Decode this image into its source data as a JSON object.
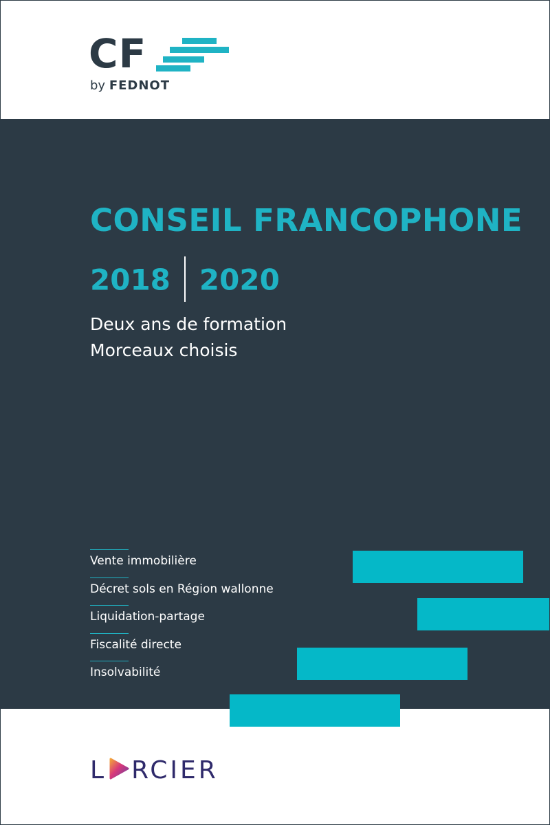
{
  "logo_top": {
    "letters": "CF",
    "by": "by",
    "brand": "FEDNOT",
    "accent_color": "#1fb3c4",
    "text_color": "#2c3a45"
  },
  "cover": {
    "title": "CONSEIL FRANCOPHONE",
    "year_start": "2018",
    "year_end": "2020",
    "subtitle_lines": [
      "Deux ans de formation",
      "Morceaux choisis"
    ],
    "band_color": "#2c3a45",
    "accent_color": "#1fb3c4"
  },
  "topics": [
    "Vente immobilière",
    "Décret sols en Région wallonne",
    "Liquidation-partage",
    "Fiscalité directe",
    "Insolvabilité"
  ],
  "logo_bottom": {
    "pre": "L",
    "icon": "play-triangle-icon",
    "post": "RCIER",
    "color": "#2f2a6b"
  }
}
